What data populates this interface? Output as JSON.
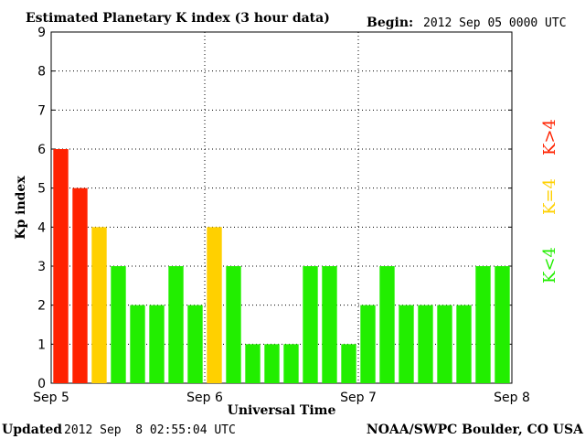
{
  "header": {
    "title": "Estimated Planetary K index (3 hour data)",
    "begin_label": "Begin:",
    "begin_value": "2012 Sep 05 0000 UTC"
  },
  "footer": {
    "updated_label": "Updated",
    "updated_value": "2012 Sep  8 02:55:04 UTC",
    "source": "NOAA/SWPC Boulder, CO USA"
  },
  "legend": {
    "high": "K>4",
    "mid": "K=4",
    "low": "K<4"
  },
  "colors": {
    "high": "#ff2200",
    "mid": "#ffd000",
    "low": "#22ee00",
    "grid": "#000000"
  },
  "chart_data": {
    "type": "bar",
    "title": "Estimated Planetary K index (3 hour data)",
    "xlabel": "Universal Time",
    "ylabel": "Kp index",
    "ylim": [
      0,
      9
    ],
    "yticks": [
      0,
      1,
      2,
      3,
      4,
      5,
      6,
      7,
      8,
      9
    ],
    "xticks": [
      "Sep 5",
      "Sep 6",
      "Sep 7",
      "Sep 8"
    ],
    "grid": true,
    "bars_per_day": 8,
    "values": [
      6,
      5,
      4,
      3,
      2,
      2,
      3,
      2,
      4,
      3,
      1,
      1,
      1,
      3,
      3,
      1,
      2,
      3,
      2,
      2,
      2,
      2,
      3,
      3
    ],
    "legend_position": "right"
  }
}
